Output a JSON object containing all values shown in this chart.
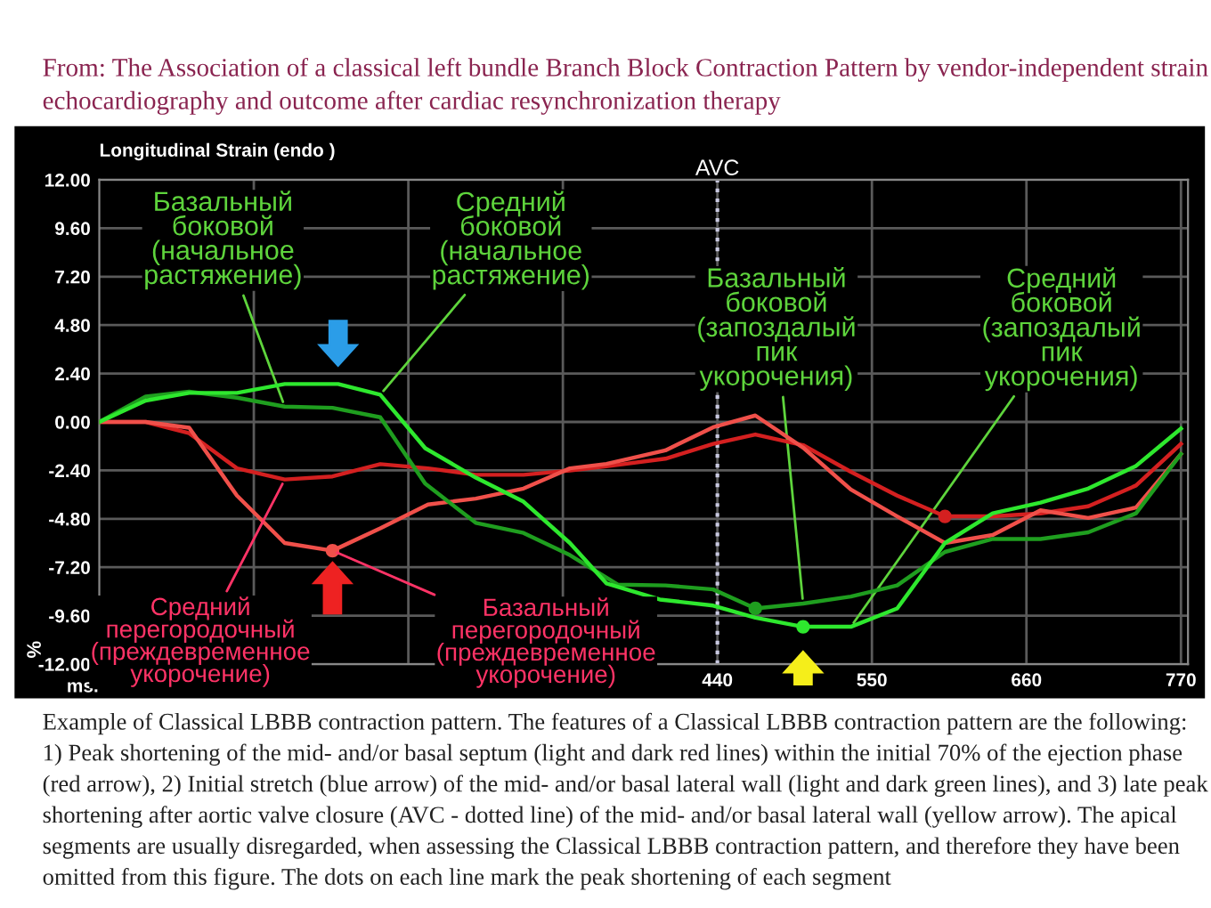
{
  "chart_data": {
    "type": "line",
    "title": "From: The Association of a classical left bundle Branch Block Contraction Pattern by vendor-independent strain echocardiography and outcome after cardiac resynchronization therapy",
    "subtitle": "Longitudinal Strain (endo )",
    "xlabel": "ms.",
    "ylabel": "%",
    "xlim": [
      0,
      775
    ],
    "ylim": [
      -12,
      12
    ],
    "xticks": [
      {
        "value": 110,
        "label": null
      },
      {
        "value": 220,
        "label": null
      },
      {
        "value": 330,
        "label": null
      },
      440,
      550,
      660,
      770
    ],
    "yticks": [
      {
        "value": 12,
        "label": "12.00"
      },
      {
        "value": 9.6,
        "label": "9.60"
      },
      {
        "value": 7.2,
        "label": "7.20"
      },
      {
        "value": 4.8,
        "label": "4.80"
      },
      {
        "value": 2.4,
        "label": "2.40"
      },
      {
        "value": 0,
        "label": "0.00"
      },
      {
        "value": -2.4,
        "label": "-2.40"
      },
      {
        "value": -4.8,
        "label": "-4.80"
      },
      {
        "value": -7.2,
        "label": "-7.20"
      },
      {
        "value": -9.6,
        "label": "-9.60"
      },
      {
        "value": -12,
        "label": "-12.00"
      }
    ],
    "grid": true,
    "legend": false,
    "marker": "none",
    "line_style": "solid",
    "series": [
      {
        "color": "#d42020",
        "x": [
          0,
          33,
          64,
          98,
          132,
          166,
          200,
          234,
          268,
          302,
          335,
          361,
          403,
          437,
          467,
          501,
          535,
          568,
          602,
          636,
          670,
          704,
          738,
          770
        ],
        "values": [
          0,
          0,
          -0.56,
          -2.3,
          -2.85,
          -2.7,
          -2.09,
          -2.3,
          -2.62,
          -2.62,
          -2.41,
          -2.2,
          -1.82,
          -1.09,
          -0.62,
          -1.15,
          -2.47,
          -3.65,
          -4.68,
          -4.68,
          -4.53,
          -4.18,
          -3.15,
          -1.09
        ]
      },
      {
        "color": "#f0504a",
        "x": [
          0,
          33,
          64,
          98,
          132,
          166,
          200,
          234,
          268,
          302,
          335,
          361,
          403,
          437,
          467,
          501,
          535,
          568,
          602,
          636,
          670,
          704,
          738,
          770
        ],
        "values": [
          0,
          0,
          -0.29,
          -3.65,
          -6.0,
          -6.38,
          -5.27,
          -4.09,
          -3.8,
          -3.3,
          -2.3,
          -2.08,
          -1.41,
          -0.26,
          0.32,
          -1.27,
          -3.35,
          -4.68,
          -6.0,
          -5.6,
          -4.38,
          -4.76,
          -4.24,
          -1.59
        ]
      },
      {
        "color": "#1f9e1f",
        "x": [
          0,
          33,
          64,
          98,
          132,
          166,
          200,
          232,
          268,
          302,
          335,
          369,
          403,
          437,
          467,
          501,
          535,
          568,
          602,
          636,
          670,
          704,
          738,
          770
        ],
        "values": [
          0,
          1.26,
          1.5,
          1.2,
          0.76,
          0.7,
          0.23,
          -3.06,
          -5.0,
          -5.5,
          -6.6,
          -8.06,
          -8.1,
          -8.3,
          -9.24,
          -9.0,
          -8.65,
          -8.1,
          -6.44,
          -5.8,
          -5.8,
          -5.47,
          -4.53,
          -1.59
        ]
      },
      {
        "color": "#2ee82e",
        "x": [
          0,
          33,
          64,
          98,
          132,
          170,
          200,
          232,
          268,
          302,
          335,
          361,
          399,
          437,
          467,
          501,
          535,
          568,
          602,
          636,
          670,
          704,
          738,
          770
        ],
        "values": [
          0,
          1.06,
          1.44,
          1.44,
          1.88,
          1.88,
          1.35,
          -1.3,
          -2.76,
          -3.95,
          -6.0,
          -8.0,
          -8.8,
          -9.1,
          -9.7,
          -10.15,
          -10.15,
          -9.24,
          -6.0,
          -4.53,
          -4.0,
          -3.3,
          -2.18,
          -0.33
        ]
      },
      {
        "type": "scatter",
        "marker": "circle",
        "x": [
          166,
          467,
          501,
          602
        ],
        "values": [
          -6.38,
          -9.24,
          -10.15,
          -4.68
        ],
        "colors": [
          "#f0504a",
          "#1f9e1f",
          "#2ee82e",
          "#d42020"
        ]
      }
    ],
    "ref_lines": [
      {
        "axis": "x",
        "value": 440,
        "label": "AVC",
        "color": "#c8c8e0",
        "line_style": "dotted"
      }
    ],
    "annotations": [
      {
        "text": "Базальный\nбоковой\n(начальное\nрастяжение)",
        "x": 132,
        "y": 0.76
      },
      {
        "text": "Средний\nбоковой\n(начальное\nрастяжение)",
        "x": 200,
        "y": 1.35
      },
      {
        "text": "Средний\nперегородочный\n(преждевременное\nукорочение)",
        "x": 132,
        "y": -2.85
      },
      {
        "text": "Базальный\nперегородочный\n(преждевременное\nукорочение)",
        "x": 166,
        "y": -6.38
      },
      {
        "text": "Базальный\nбоковой\n(запоздалый\nпик\nукорочения)",
        "x": 501,
        "y": -9.0
      },
      {
        "text": "Средний\nбоковой\n(запоздалый\nпик\nукорочения)",
        "x": 535,
        "y": -10.15
      },
      "Example of Classical LBBB contraction pattern. The features of a Classical LBBB contraction pattern are the following: 1) Peak shortening of the mid- and/or basal septum (light and dark red lines) within the initial 70% of the ejection phase (red arrow), 2) Initial stretch (blue arrow) of the mid- and/or basal lateral wall (light and dark green lines), and 3) late peak shortening after aortic valve closure (AVC - dotted line) of the mid- and/or basal lateral wall (yellow arrow). The apical segments are usually disregarded, when assessing the Classical LBBB contraction pattern, and therefore they have been omitted from this figure. The dots on each line mark the peak shortening of each segment"
    ]
  }
}
